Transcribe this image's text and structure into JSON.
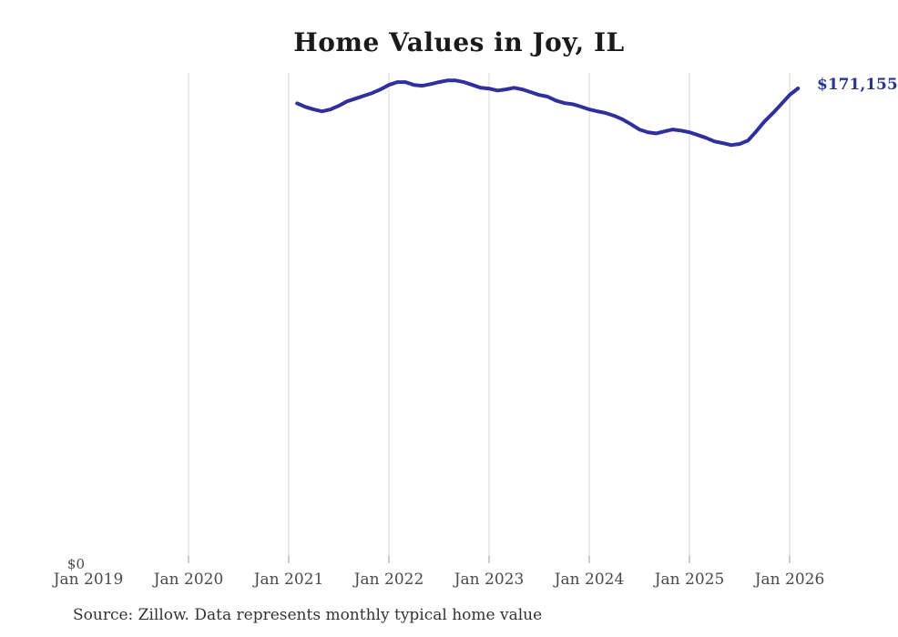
{
  "page": {
    "title": "Home Values in Joy, IL",
    "zero_label": "$0",
    "end_label": "$171,155",
    "source_note": "Source: Zillow. Data represents monthly typical home value"
  },
  "colors": {
    "line": "#2f2f9e",
    "end_label": "#2b3399",
    "gridline": "#d4d4d4",
    "tick": "#999999",
    "axis_label": "#4a4a4a",
    "title": "#1a1a1a",
    "source": "#333333"
  },
  "chart_data": {
    "type": "line",
    "title": "Home Values in Joy, IL",
    "series_name": "Monthly typical home value (USD)",
    "x_ticks": [
      "Jan 2019",
      "Jan 2020",
      "Jan 2021",
      "Jan 2022",
      "Jan 2023",
      "Jan 2024",
      "Jan 2025",
      "Jan 2026"
    ],
    "x_range_shown": [
      "2019-01",
      "2026-02"
    ],
    "start_month": "2021-02",
    "ylim": [
      0,
      180000
    ],
    "y_axis_labels": [
      "$0"
    ],
    "grid": "vertical-only",
    "legend": "none",
    "end_value_label": "$171,155",
    "values": [
      165800,
      164500,
      163600,
      162900,
      163600,
      164900,
      166500,
      167500,
      168500,
      169500,
      170800,
      172400,
      173400,
      173400,
      172400,
      172100,
      172700,
      173400,
      174000,
      174000,
      173400,
      172400,
      171400,
      171100,
      170400,
      170800,
      171400,
      170800,
      169800,
      168800,
      168200,
      166800,
      165900,
      165500,
      164600,
      163600,
      162900,
      162300,
      161300,
      160000,
      158300,
      156400,
      155400,
      155000,
      155700,
      156400,
      156000,
      155400,
      154400,
      153400,
      152100,
      151500,
      150800,
      151200,
      152400,
      155700,
      159300,
      162300,
      165500,
      168800,
      171155
    ]
  }
}
